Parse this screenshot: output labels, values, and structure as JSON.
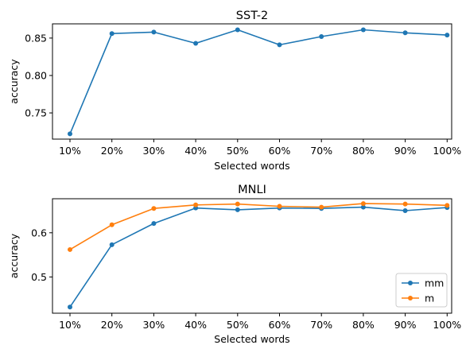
{
  "chart_data": [
    {
      "type": "line",
      "title": "SST-2",
      "xlabel": "Selected words",
      "ylabel": "accuracy",
      "categories": [
        "10%",
        "20%",
        "30%",
        "40%",
        "50%",
        "60%",
        "70%",
        "80%",
        "90%",
        "100%"
      ],
      "ylim": [
        0.715,
        0.869
      ],
      "yticks": [
        0.75,
        0.8,
        0.85
      ],
      "ytick_labels": [
        "0.75",
        "0.80",
        "0.85"
      ],
      "grid": false,
      "legend": null,
      "series": [
        {
          "color": "#1f77b4",
          "values": [
            0.722,
            0.856,
            0.858,
            0.843,
            0.861,
            0.841,
            0.852,
            0.861,
            0.857,
            0.854
          ]
        }
      ]
    },
    {
      "type": "line",
      "title": "MNLI",
      "xlabel": "Selected words",
      "ylabel": "accuracy",
      "categories": [
        "10%",
        "20%",
        "30%",
        "40%",
        "50%",
        "60%",
        "70%",
        "80%",
        "90%",
        "100%"
      ],
      "ylim": [
        0.418,
        0.677
      ],
      "yticks": [
        0.5,
        0.6
      ],
      "ytick_labels": [
        "0.5",
        "0.6"
      ],
      "grid": false,
      "legend": "lower-right",
      "series": [
        {
          "name": "mm",
          "color": "#1f77b4",
          "values": [
            0.432,
            0.573,
            0.621,
            0.656,
            0.652,
            0.656,
            0.655,
            0.658,
            0.65,
            0.657
          ]
        },
        {
          "name": "m",
          "color": "#ff7f0e",
          "values": [
            0.562,
            0.618,
            0.655,
            0.663,
            0.665,
            0.66,
            0.658,
            0.666,
            0.665,
            0.662
          ]
        }
      ]
    }
  ]
}
